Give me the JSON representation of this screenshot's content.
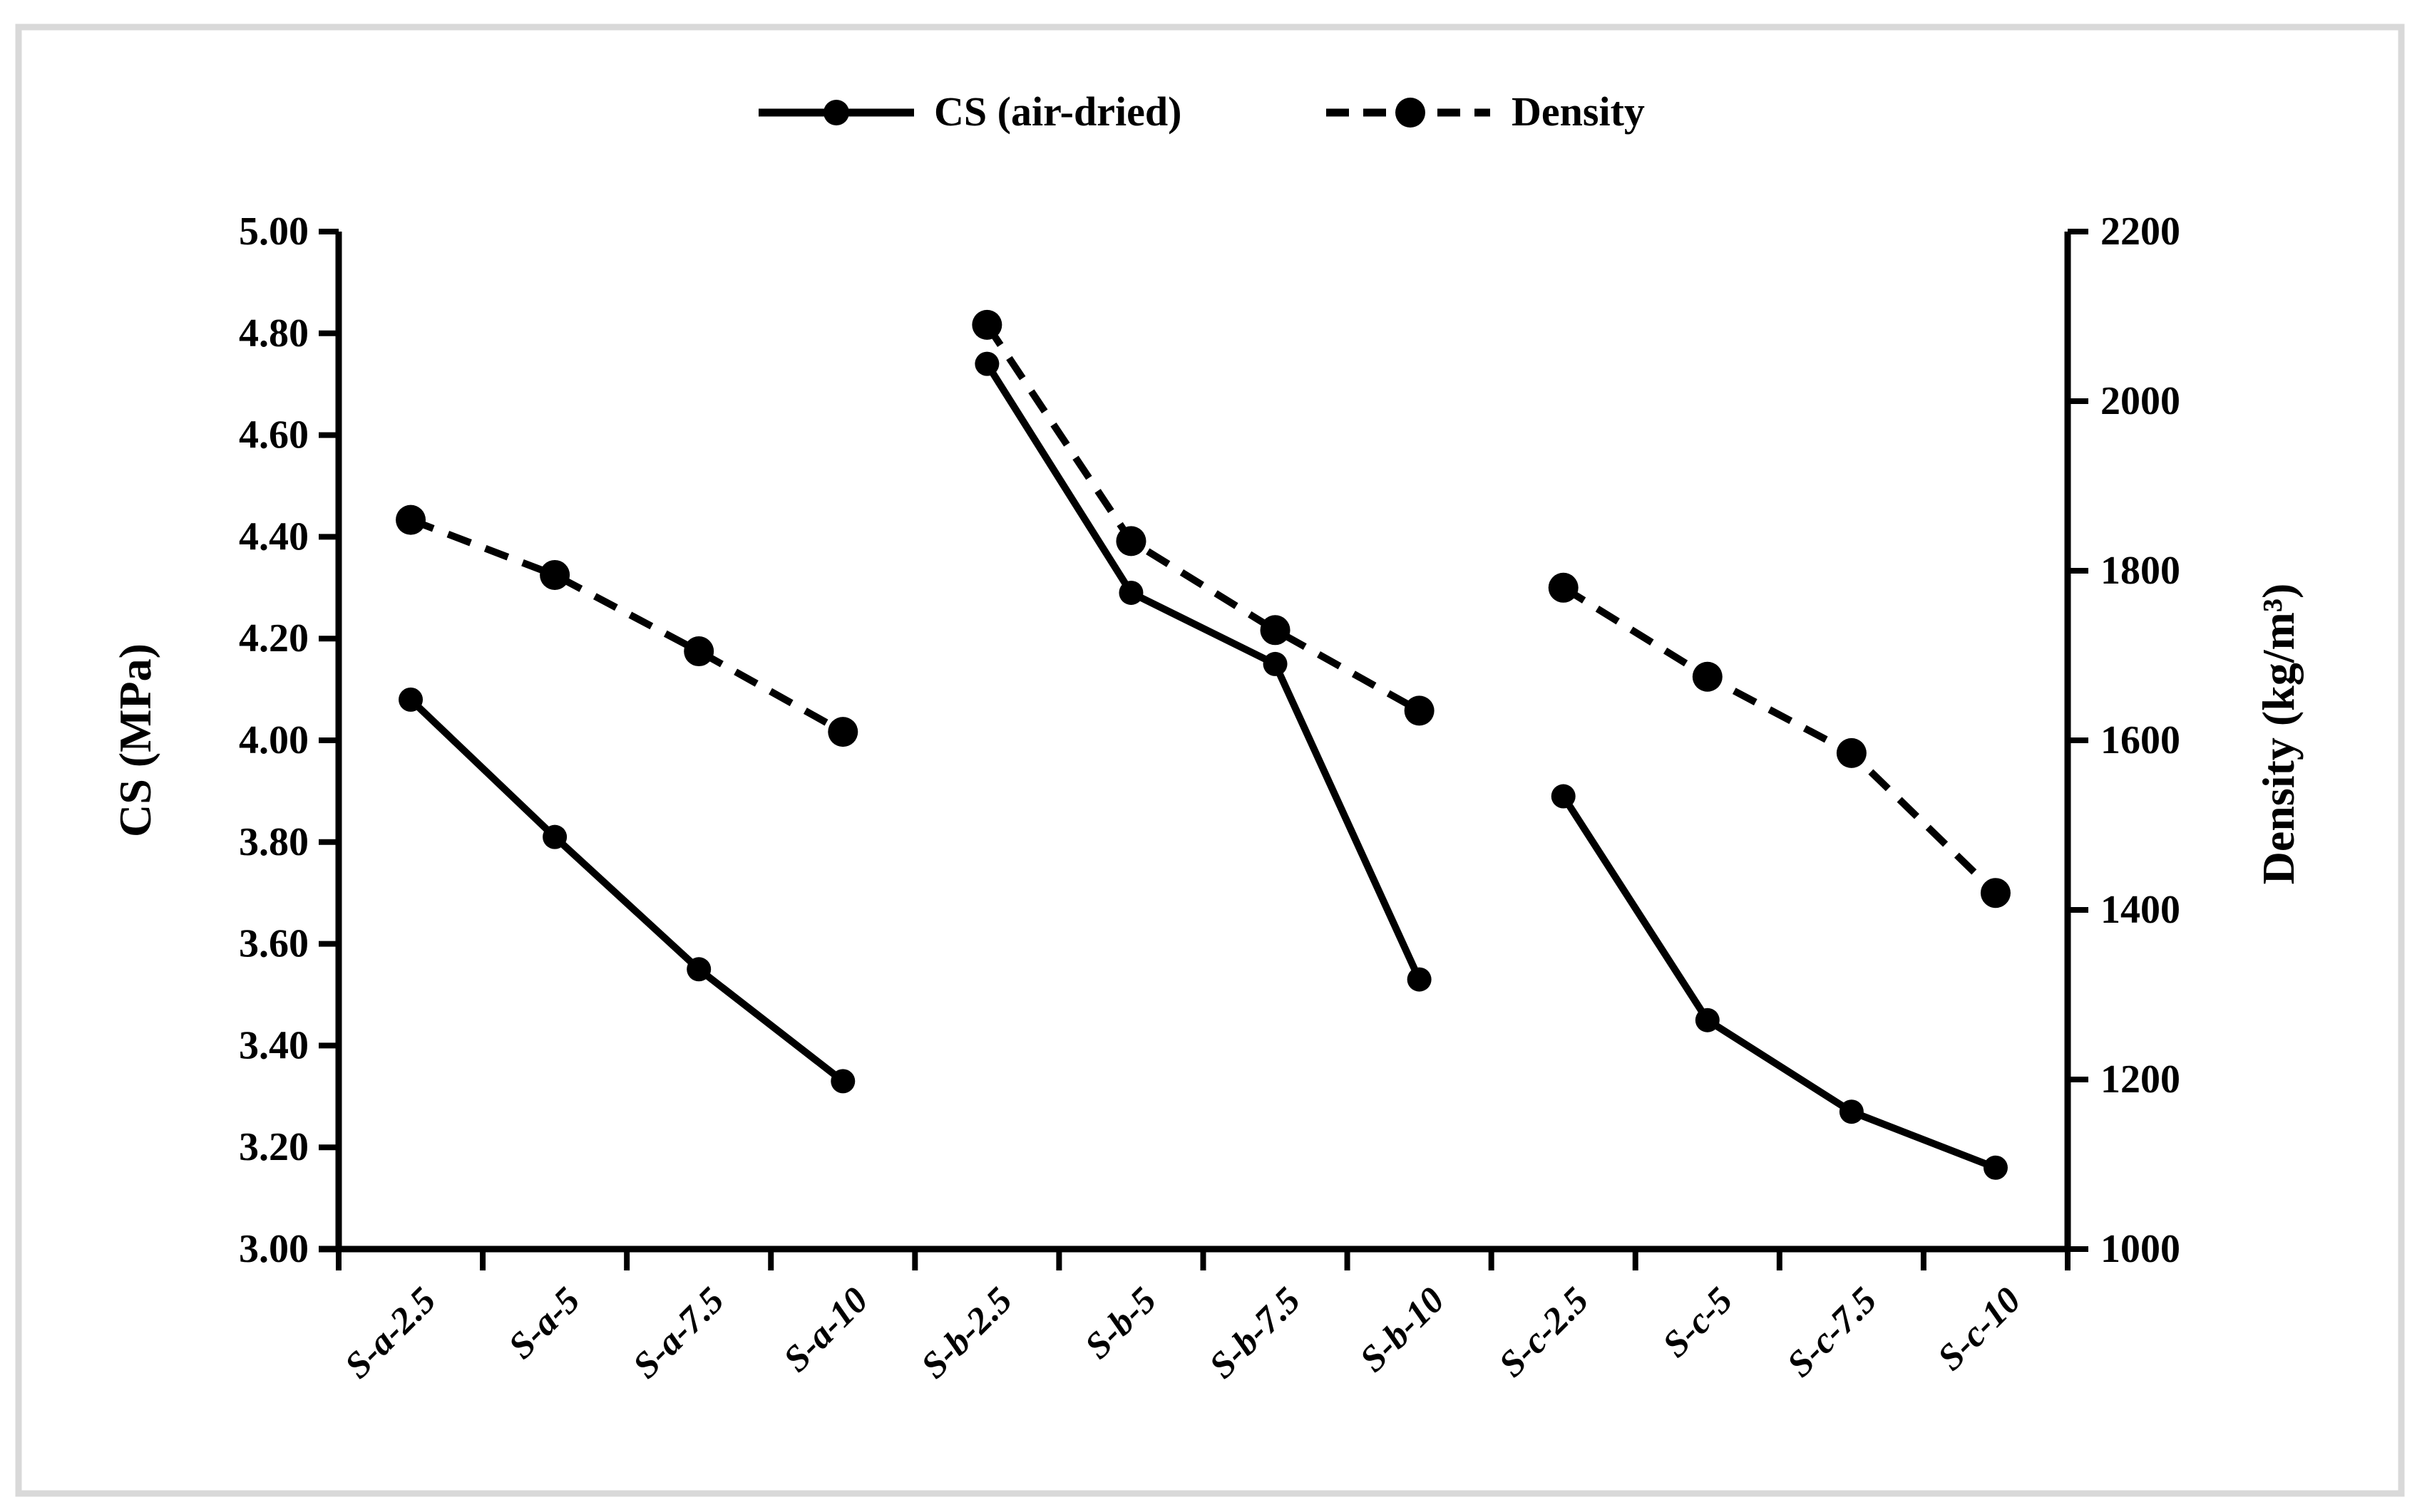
{
  "chart_data": {
    "type": "line",
    "title": "",
    "categories": [
      "S-a-2.5",
      "S-a-5",
      "S-a-7.5",
      "S-a-10",
      "S-b-2.5",
      "S-b-5",
      "S-b-7.5",
      "S-b-10",
      "S-c-2.5",
      "S-c-5",
      "S-c-7.5",
      "S-c-10"
    ],
    "series": [
      {
        "name": "CS (air-dried)",
        "axis": "left",
        "style": "solid",
        "marker": "circle",
        "values": [
          4.08,
          3.81,
          3.55,
          3.33,
          4.74,
          4.29,
          4.15,
          3.53,
          3.89,
          3.45,
          3.27,
          3.16
        ]
      },
      {
        "name": "Density",
        "axis": "right",
        "style": "dashed",
        "marker": "circle",
        "values": [
          1860,
          1795,
          1705,
          1610,
          2090,
          1835,
          1730,
          1635,
          1780,
          1675,
          1585,
          1420
        ]
      }
    ],
    "segment_groups": [
      [
        0,
        1,
        2,
        3
      ],
      [
        4,
        5,
        6,
        7
      ],
      [
        8,
        9,
        10,
        11
      ]
    ],
    "left_axis": {
      "label": "CS (MPa)",
      "min": 3.0,
      "max": 5.0,
      "step": 0.2,
      "decimals": 2
    },
    "right_axis": {
      "label": "Density (kg/m³)",
      "min": 1000,
      "max": 2200,
      "step": 200,
      "decimals": 0
    },
    "grid": false,
    "legend_position": "top-center"
  },
  "legend": {
    "items": [
      {
        "label": "CS (air-dried)",
        "style": "solid"
      },
      {
        "label": "Density",
        "style": "dashed"
      }
    ]
  },
  "colors": {
    "series": "#000000",
    "text": "#000000",
    "background": "#ffffff",
    "frame_border": "#d9d9d9"
  }
}
